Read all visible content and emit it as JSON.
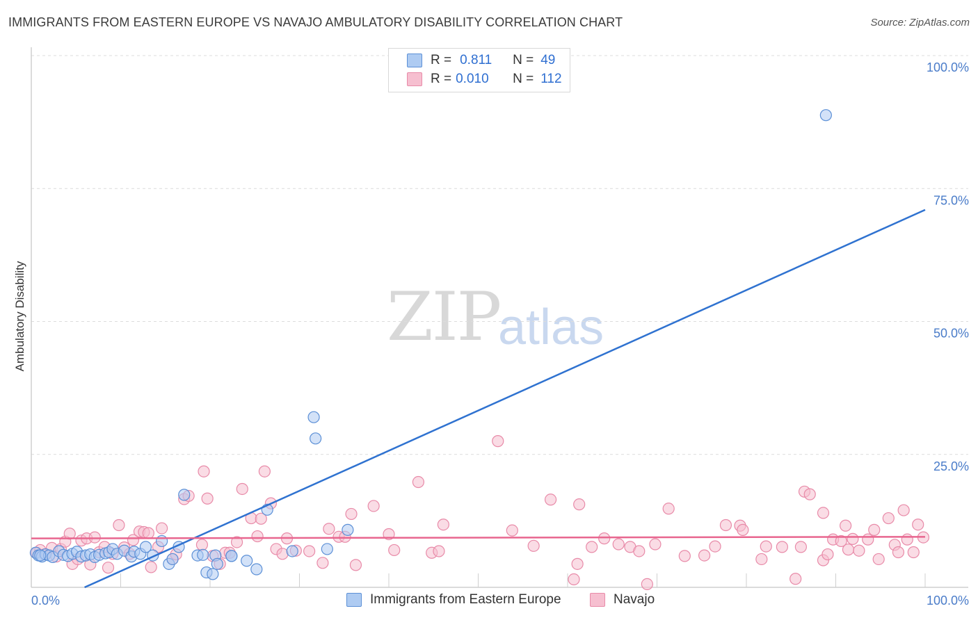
{
  "header": {
    "title": "IMMIGRANTS FROM EASTERN EUROPE VS NAVAJO AMBULATORY DISABILITY CORRELATION CHART",
    "source": "Source: ZipAtlas.com"
  },
  "watermark": {
    "zip": "ZIP",
    "atlas": "atlas"
  },
  "legend": {
    "rows": [
      {
        "r_label": "R =",
        "r_value": "0.811",
        "n_label": "N =",
        "n_value": "49"
      },
      {
        "r_label": "R =",
        "r_value": "0.010",
        "n_label": "N =",
        "n_value": "112"
      }
    ]
  },
  "bottom_legend": {
    "series0": "Immigrants from Eastern Europe",
    "series1": "Navajo"
  },
  "colors": {
    "blue_fill": "#aecbf2",
    "blue_stroke": "#5b8fd6",
    "blue_line": "#2f72d0",
    "pink_fill": "#f6bfd0",
    "pink_stroke": "#e88aa8",
    "pink_line": "#e8668f",
    "grid": "#dcdcdc",
    "tick_text": "#4a7cc9"
  },
  "chart_data": {
    "type": "scatter",
    "title": "IMMIGRANTS FROM EASTERN EUROPE VS NAVAJO AMBULATORY DISABILITY CORRELATION CHART",
    "xlabel": "",
    "ylabel": "Ambulatory Disability",
    "xlim": [
      0,
      100
    ],
    "ylim": [
      0,
      100
    ],
    "x_tick_labels": [
      "0.0%",
      "100.0%"
    ],
    "y_ticks": [
      25,
      50,
      75,
      100
    ],
    "y_tick_labels": [
      "25.0%",
      "50.0%",
      "75.0%",
      "100.0%"
    ],
    "grid": true,
    "legend_position": "top-center",
    "series": [
      {
        "name": "Immigrants from Eastern Europe",
        "color": "#aecbf2",
        "r": 0.811,
        "n": 49,
        "trend": {
          "x": [
            0,
            100
          ],
          "y": [
            -4.5,
            71.0
          ]
        },
        "points": [
          [
            0.5,
            6.5
          ],
          [
            0.8,
            6.0
          ],
          [
            1.2,
            5.8
          ],
          [
            1.6,
            6.2
          ],
          [
            2.0,
            6.0
          ],
          [
            2.4,
            5.7
          ],
          [
            3.1,
            6.8
          ],
          [
            3.6,
            6.1
          ],
          [
            4.1,
            5.9
          ],
          [
            4.6,
            6.3
          ],
          [
            5.1,
            6.7
          ],
          [
            5.6,
            5.8
          ],
          [
            6.1,
            6.0
          ],
          [
            6.6,
            6.2
          ],
          [
            7.1,
            5.7
          ],
          [
            7.6,
            6.1
          ],
          [
            8.3,
            6.4
          ],
          [
            8.7,
            6.6
          ],
          [
            9.1,
            7.2
          ],
          [
            9.6,
            6.3
          ],
          [
            10.4,
            6.9
          ],
          [
            11.2,
            5.8
          ],
          [
            11.5,
            6.7
          ],
          [
            12.2,
            6.3
          ],
          [
            12.8,
            7.6
          ],
          [
            13.6,
            6.0
          ],
          [
            14.6,
            8.7
          ],
          [
            15.4,
            4.4
          ],
          [
            15.8,
            5.3
          ],
          [
            16.5,
            7.6
          ],
          [
            17.1,
            17.4
          ],
          [
            18.6,
            6.0
          ],
          [
            19.2,
            6.1
          ],
          [
            19.6,
            2.8
          ],
          [
            20.3,
            2.5
          ],
          [
            20.6,
            6.0
          ],
          [
            20.8,
            4.4
          ],
          [
            22.4,
            5.9
          ],
          [
            22.4,
            5.9
          ],
          [
            24.1,
            5.0
          ],
          [
            25.2,
            3.4
          ],
          [
            26.4,
            14.6
          ],
          [
            29.2,
            6.8
          ],
          [
            31.6,
            32.0
          ],
          [
            31.8,
            28.0
          ],
          [
            33.1,
            7.2
          ],
          [
            35.4,
            10.8
          ],
          [
            88.9,
            88.8
          ],
          [
            1.0,
            6.0
          ]
        ]
      },
      {
        "name": "Navajo",
        "color": "#f6bfd0",
        "r": 0.01,
        "n": 112,
        "trend": {
          "x": [
            0,
            100
          ],
          "y": [
            9.2,
            9.5
          ]
        },
        "points": [
          [
            0.6,
            6.5
          ],
          [
            1.0,
            7.0
          ],
          [
            1.5,
            6.2
          ],
          [
            2.3,
            7.4
          ],
          [
            2.8,
            5.8
          ],
          [
            3.3,
            7.2
          ],
          [
            3.8,
            8.6
          ],
          [
            4.3,
            10.1
          ],
          [
            4.6,
            4.4
          ],
          [
            5.2,
            5.3
          ],
          [
            5.6,
            8.8
          ],
          [
            6.2,
            9.2
          ],
          [
            6.6,
            4.3
          ],
          [
            7.1,
            9.4
          ],
          [
            7.6,
            6.6
          ],
          [
            8.2,
            7.6
          ],
          [
            8.6,
            3.7
          ],
          [
            9.1,
            6.3
          ],
          [
            9.8,
            11.7
          ],
          [
            10.4,
            7.5
          ],
          [
            11.0,
            6.3
          ],
          [
            11.4,
            8.9
          ],
          [
            12.1,
            10.5
          ],
          [
            12.6,
            10.4
          ],
          [
            13.1,
            10.2
          ],
          [
            13.4,
            3.8
          ],
          [
            14.2,
            7.6
          ],
          [
            14.6,
            11.1
          ],
          [
            15.8,
            5.3
          ],
          [
            16.2,
            6.2
          ],
          [
            17.1,
            16.6
          ],
          [
            17.6,
            17.2
          ],
          [
            19.1,
            8.0
          ],
          [
            19.3,
            21.8
          ],
          [
            19.7,
            16.7
          ],
          [
            20.3,
            5.9
          ],
          [
            21.1,
            4.4
          ],
          [
            21.7,
            6.5
          ],
          [
            22.2,
            6.5
          ],
          [
            23.0,
            8.5
          ],
          [
            23.6,
            18.5
          ],
          [
            24.6,
            13.0
          ],
          [
            25.3,
            9.6
          ],
          [
            25.7,
            12.9
          ],
          [
            26.1,
            21.8
          ],
          [
            26.8,
            15.8
          ],
          [
            27.4,
            7.2
          ],
          [
            28.1,
            6.3
          ],
          [
            28.6,
            9.2
          ],
          [
            29.6,
            6.9
          ],
          [
            31.1,
            6.8
          ],
          [
            32.6,
            4.6
          ],
          [
            33.3,
            11.0
          ],
          [
            34.4,
            9.5
          ],
          [
            35.1,
            9.5
          ],
          [
            35.8,
            13.8
          ],
          [
            36.3,
            4.2
          ],
          [
            38.3,
            15.3
          ],
          [
            40.0,
            10.0
          ],
          [
            40.6,
            7.0
          ],
          [
            43.3,
            19.8
          ],
          [
            44.8,
            6.5
          ],
          [
            45.6,
            6.8
          ],
          [
            46.1,
            11.8
          ],
          [
            52.2,
            27.5
          ],
          [
            53.8,
            10.7
          ],
          [
            56.2,
            7.8
          ],
          [
            58.1,
            16.5
          ],
          [
            60.7,
            1.5
          ],
          [
            61.1,
            4.4
          ],
          [
            61.3,
            15.6
          ],
          [
            62.7,
            7.6
          ],
          [
            64.1,
            9.2
          ],
          [
            65.7,
            8.1
          ],
          [
            67.0,
            7.6
          ],
          [
            68.0,
            6.8
          ],
          [
            68.9,
            0.6
          ],
          [
            69.8,
            8.1
          ],
          [
            71.3,
            14.8
          ],
          [
            73.1,
            5.9
          ],
          [
            75.3,
            6.0
          ],
          [
            76.5,
            7.7
          ],
          [
            77.7,
            11.7
          ],
          [
            79.3,
            11.6
          ],
          [
            79.6,
            10.8
          ],
          [
            81.7,
            5.3
          ],
          [
            82.2,
            7.7
          ],
          [
            84.0,
            7.6
          ],
          [
            85.5,
            1.6
          ],
          [
            86.1,
            7.6
          ],
          [
            86.5,
            18.0
          ],
          [
            87.1,
            17.5
          ],
          [
            88.6,
            5.1
          ],
          [
            89.1,
            6.2
          ],
          [
            88.6,
            14.0
          ],
          [
            89.7,
            9.0
          ],
          [
            90.6,
            8.7
          ],
          [
            91.1,
            11.6
          ],
          [
            91.4,
            7.1
          ],
          [
            91.9,
            9.1
          ],
          [
            92.6,
            6.9
          ],
          [
            93.6,
            9.0
          ],
          [
            94.3,
            10.8
          ],
          [
            94.8,
            5.3
          ],
          [
            95.9,
            13.0
          ],
          [
            96.6,
            8.0
          ],
          [
            97.0,
            6.6
          ],
          [
            97.6,
            14.5
          ],
          [
            98.0,
            9.0
          ],
          [
            98.7,
            6.6
          ],
          [
            99.2,
            11.8
          ],
          [
            99.8,
            9.4
          ]
        ]
      }
    ]
  }
}
